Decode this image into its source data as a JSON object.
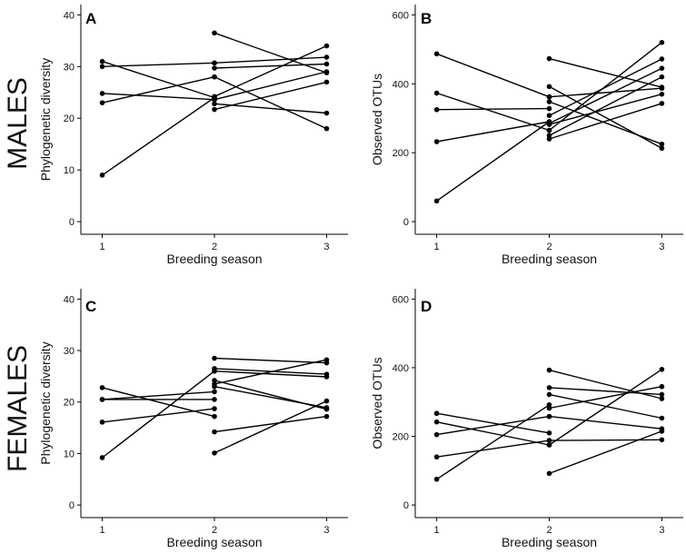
{
  "row_labels": [
    "MALES",
    "FEMALES"
  ],
  "chart_data": [
    {
      "type": "line",
      "panel": "A",
      "row": "MALES",
      "xlabel": "Breeding season",
      "ylabel": "Phylogenetic diversity",
      "x_ticks": [
        1,
        2,
        3
      ],
      "y_ticks": [
        0,
        10,
        20,
        30,
        40
      ],
      "xlim": [
        1,
        3
      ],
      "ylim": [
        0,
        40
      ],
      "grid": false,
      "series": [
        {
          "x": [
            1,
            2
          ],
          "y": [
            31,
            24
          ]
        },
        {
          "x": [
            1,
            2
          ],
          "y": [
            30,
            30.7
          ]
        },
        {
          "x": [
            1,
            2
          ],
          "y": [
            24.8,
            23.6
          ]
        },
        {
          "x": [
            1,
            2
          ],
          "y": [
            23,
            28
          ]
        },
        {
          "x": [
            1,
            2
          ],
          "y": [
            9,
            24
          ]
        },
        {
          "x": [
            2,
            3
          ],
          "y": [
            36.5,
            28.8
          ]
        },
        {
          "x": [
            2,
            3
          ],
          "y": [
            30.7,
            31.8
          ]
        },
        {
          "x": [
            2,
            3
          ],
          "y": [
            29.7,
            30.5
          ]
        },
        {
          "x": [
            2,
            3
          ],
          "y": [
            28,
            18
          ]
        },
        {
          "x": [
            2,
            3
          ],
          "y": [
            24.2,
            34
          ]
        },
        {
          "x": [
            2,
            3
          ],
          "y": [
            23.6,
            29
          ]
        },
        {
          "x": [
            2,
            3
          ],
          "y": [
            22.8,
            21
          ]
        },
        {
          "x": [
            2,
            3
          ],
          "y": [
            21.7,
            27
          ]
        }
      ]
    },
    {
      "type": "line",
      "panel": "B",
      "row": "MALES",
      "xlabel": "Breeding season",
      "ylabel": "Observed OTUs",
      "x_ticks": [
        1,
        2,
        3
      ],
      "y_ticks": [
        0,
        200,
        400,
        600
      ],
      "xlim": [
        1,
        3
      ],
      "ylim": [
        0,
        600
      ],
      "grid": false,
      "series": [
        {
          "x": [
            1,
            2
          ],
          "y": [
            487,
            362
          ]
        },
        {
          "x": [
            1,
            2
          ],
          "y": [
            373,
            265
          ]
        },
        {
          "x": [
            1,
            2
          ],
          "y": [
            325,
            328
          ]
        },
        {
          "x": [
            1,
            2
          ],
          "y": [
            232,
            290
          ]
        },
        {
          "x": [
            1,
            2
          ],
          "y": [
            60,
            290
          ]
        },
        {
          "x": [
            2,
            3
          ],
          "y": [
            473,
            390
          ]
        },
        {
          "x": [
            2,
            3
          ],
          "y": [
            392,
            213
          ]
        },
        {
          "x": [
            2,
            3
          ],
          "y": [
            362,
            387
          ]
        },
        {
          "x": [
            2,
            3
          ],
          "y": [
            348,
            225
          ]
        },
        {
          "x": [
            2,
            3
          ],
          "y": [
            308,
            472
          ]
        },
        {
          "x": [
            2,
            3
          ],
          "y": [
            285,
            445
          ]
        },
        {
          "x": [
            2,
            3
          ],
          "y": [
            265,
            520
          ]
        },
        {
          "x": [
            2,
            3
          ],
          "y": [
            250,
            420
          ]
        },
        {
          "x": [
            2,
            3
          ],
          "y": [
            240,
            343
          ]
        },
        {
          "x": [
            2,
            3
          ],
          "y": [
            282,
            370
          ]
        }
      ]
    },
    {
      "type": "line",
      "panel": "C",
      "row": "FEMALES",
      "xlabel": "Breeding season",
      "ylabel": "Phylogenetic diversity",
      "x_ticks": [
        1,
        2,
        3
      ],
      "y_ticks": [
        0,
        10,
        20,
        30,
        40
      ],
      "xlim": [
        1,
        3
      ],
      "ylim": [
        0,
        40
      ],
      "grid": false,
      "series": [
        {
          "x": [
            1,
            2
          ],
          "y": [
            22.8,
            17.2
          ]
        },
        {
          "x": [
            1,
            2
          ],
          "y": [
            20.5,
            20.5
          ]
        },
        {
          "x": [
            1,
            2
          ],
          "y": [
            20.5,
            22
          ]
        },
        {
          "x": [
            1,
            2
          ],
          "y": [
            16.1,
            18.7
          ]
        },
        {
          "x": [
            1,
            2
          ],
          "y": [
            9.2,
            26
          ]
        },
        {
          "x": [
            2,
            3
          ],
          "y": [
            28.5,
            27.6
          ]
        },
        {
          "x": [
            2,
            3
          ],
          "y": [
            26.5,
            25.4
          ]
        },
        {
          "x": [
            2,
            3
          ],
          "y": [
            26,
            24.9
          ]
        },
        {
          "x": [
            2,
            3
          ],
          "y": [
            24.2,
            18.6
          ]
        },
        {
          "x": [
            2,
            3
          ],
          "y": [
            23.5,
            28.2
          ]
        },
        {
          "x": [
            2,
            3
          ],
          "y": [
            23,
            18.9
          ]
        },
        {
          "x": [
            2,
            3
          ],
          "y": [
            14.2,
            17.2
          ]
        },
        {
          "x": [
            2,
            3
          ],
          "y": [
            10.1,
            20.2
          ]
        }
      ]
    },
    {
      "type": "line",
      "panel": "D",
      "row": "FEMALES",
      "xlabel": "Breeding season",
      "ylabel": "Observed OTUs",
      "x_ticks": [
        1,
        2,
        3
      ],
      "y_ticks": [
        0,
        200,
        400,
        600
      ],
      "xlim": [
        1,
        3
      ],
      "ylim": [
        0,
        600
      ],
      "grid": false,
      "series": [
        {
          "x": [
            1,
            2
          ],
          "y": [
            267,
            210
          ]
        },
        {
          "x": [
            1,
            2
          ],
          "y": [
            242,
            175
          ]
        },
        {
          "x": [
            1,
            2
          ],
          "y": [
            205,
            258
          ]
        },
        {
          "x": [
            1,
            2
          ],
          "y": [
            140,
            188
          ]
        },
        {
          "x": [
            1,
            2
          ],
          "y": [
            75,
            292
          ]
        },
        {
          "x": [
            2,
            3
          ],
          "y": [
            393,
            310
          ]
        },
        {
          "x": [
            2,
            3
          ],
          "y": [
            342,
            322
          ]
        },
        {
          "x": [
            2,
            3
          ],
          "y": [
            322,
            253
          ]
        },
        {
          "x": [
            2,
            3
          ],
          "y": [
            282,
            345
          ]
        },
        {
          "x": [
            2,
            3
          ],
          "y": [
            258,
            222
          ]
        },
        {
          "x": [
            2,
            3
          ],
          "y": [
            188,
            190
          ]
        },
        {
          "x": [
            2,
            3
          ],
          "y": [
            175,
            395
          ]
        },
        {
          "x": [
            2,
            3
          ],
          "y": [
            92,
            215
          ]
        }
      ]
    }
  ]
}
